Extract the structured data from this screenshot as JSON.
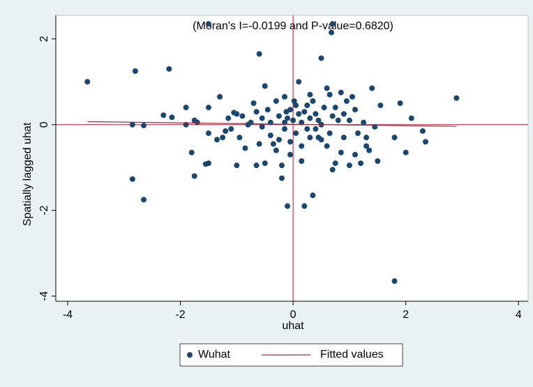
{
  "chart_data": {
    "type": "scatter",
    "title": "(Moran's I=-0.0199 and P-value=0.6820)",
    "x_label": "uhat",
    "y_label": "Spatially lagged uhat",
    "xlim": [
      -4.21,
      4.17
    ],
    "ylim": [
      -4.12,
      2.55
    ],
    "xticks": [
      -4,
      -2,
      0,
      2,
      4
    ],
    "yticks": [
      -4,
      -2,
      0,
      2
    ],
    "xline": 0,
    "yline": 0,
    "reference_color": "#b5123a",
    "series": [
      {
        "name": "Wuhat",
        "color": "#1a476f",
        "kind": "points",
        "x": [
          -3.65,
          -2.8,
          -2.2,
          -1.5,
          0.7,
          0.68,
          -0.6,
          0.5,
          -2.85,
          -2.65,
          -2.85,
          -2.65,
          -2.3,
          -2.15,
          -1.9,
          -1.75,
          -1.7,
          -1.8,
          -1.75,
          -1.55,
          -1.5,
          -1.5,
          -1.5,
          -1.3,
          -1.35,
          -1.25,
          -1.2,
          -1.1,
          -1.05,
          -1.0,
          -0.95,
          -0.9,
          -0.85,
          -0.8,
          -0.75,
          -0.7,
          -0.65,
          -0.6,
          -0.55,
          -0.5,
          -0.5,
          -0.45,
          -0.4,
          -0.35,
          -0.3,
          -0.25,
          -0.2,
          -0.2,
          -0.15,
          -0.15,
          -0.12,
          -0.1,
          -0.1,
          -0.05,
          -0.05,
          0,
          0.05,
          0.05,
          0.1,
          0.1,
          0.15,
          0.15,
          0.2,
          0.2,
          0.25,
          0.3,
          0.35,
          0.35,
          0.4,
          0.45,
          0.5,
          0.55,
          0.6,
          0.6,
          0.65,
          0.7,
          0.7,
          0.75,
          0.8,
          0.85,
          0.9,
          0.95,
          1.0,
          1.0,
          1.05,
          1.1,
          1.15,
          1.2,
          1.25,
          1.3,
          1.35,
          1.4,
          1.45,
          1.5,
          1.55,
          1.8,
          1.8,
          1.9,
          2.0,
          2.1,
          2.3,
          2.35,
          2.9,
          -1.9,
          -1.0,
          -0.55,
          -0.3,
          0.3,
          0.5,
          1.1,
          0.85,
          0.65,
          -0.25,
          0.02,
          0.25,
          0.4,
          -0.05,
          0.45,
          0.9,
          -0.65,
          -1.15,
          0.15,
          -0.4,
          1.3,
          0.75,
          -0.15,
          0.3
        ],
        "values": [
          1.0,
          1.25,
          1.3,
          2.35,
          2.35,
          2.15,
          1.65,
          1.55,
          -1.27,
          -1.75,
          0.0,
          -0.02,
          0.22,
          0.17,
          0.4,
          0.1,
          0.05,
          -0.65,
          -1.2,
          -0.92,
          -0.9,
          -0.2,
          0.4,
          0.65,
          -0.35,
          -0.3,
          -0.15,
          -0.1,
          0.28,
          0.25,
          -0.3,
          0.2,
          -0.55,
          0.0,
          0.05,
          0.5,
          -0.95,
          -0.45,
          0.15,
          0.9,
          -0.9,
          0.35,
          0.05,
          -0.45,
          0.55,
          0.2,
          -1.25,
          -0.95,
          0.65,
          -0.1,
          0.3,
          -1.9,
          0.15,
          -0.7,
          0.35,
          0.1,
          -0.2,
          0.45,
          1.0,
          0.25,
          -0.85,
          0.05,
          0.3,
          -1.9,
          -0.1,
          0.15,
          -1.65,
          0.55,
          0.25,
          -0.3,
          0.0,
          0.4,
          0.85,
          -0.5,
          0.7,
          -1.05,
          0.2,
          -0.9,
          0.1,
          0.75,
          -0.3,
          0.55,
          -0.95,
          0.1,
          0.65,
          0.35,
          -0.2,
          -0.9,
          0.05,
          -0.5,
          -0.6,
          0.85,
          -0.05,
          -0.85,
          0.45,
          -3.65,
          -0.3,
          0.5,
          -0.65,
          0.15,
          -0.15,
          -0.4,
          0.62,
          0.0,
          -0.95,
          -0.05,
          -0.6,
          0.7,
          -0.35,
          -0.7,
          -0.65,
          -0.2,
          -0.35,
          0.55,
          0.45,
          -0.1,
          -0.4,
          0.1,
          0.25,
          0.3,
          0.15,
          -0.5,
          -0.25,
          -0.3,
          0.4,
          0.05,
          -0.3
        ]
      },
      {
        "name": "Fitted values",
        "color": "#90353b",
        "kind": "line",
        "x": [
          -3.65,
          2.9
        ],
        "values": [
          0.07,
          -0.04
        ]
      }
    ]
  }
}
